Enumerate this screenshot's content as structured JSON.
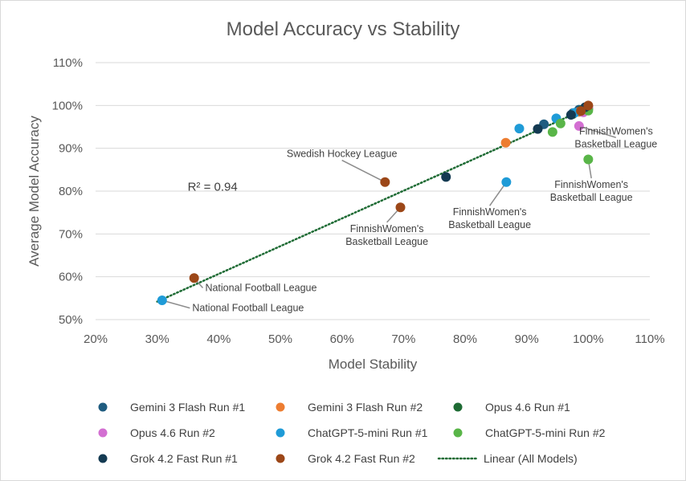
{
  "chart_data": {
    "type": "scatter",
    "title": "Model Accuracy vs Stability",
    "xlabel": "Model Stability",
    "ylabel": "Average Model Accuracy",
    "xlim": [
      0.2,
      1.1
    ],
    "ylim": [
      0.5,
      1.1
    ],
    "x_ticks": [
      "20%",
      "30%",
      "40%",
      "50%",
      "60%",
      "70%",
      "80%",
      "90%",
      "100%",
      "110%"
    ],
    "y_ticks": [
      "50%",
      "60%",
      "70%",
      "80%",
      "90%",
      "100%",
      "110%"
    ],
    "grid": "horizontal",
    "legend_position": "bottom",
    "series": [
      {
        "name": "Gemini 3 Flash Run #1",
        "color": "#1f5c80",
        "points": [
          [
            0.928,
            0.956
          ],
          [
            0.975,
            0.982
          ],
          [
            0.985,
            0.99
          ],
          [
            0.995,
            0.994
          ],
          [
            1.0,
            0.998
          ]
        ]
      },
      {
        "name": "Gemini 3 Flash Run #2",
        "color": "#ed7d31",
        "points": [
          [
            0.866,
            0.913
          ],
          [
            0.985,
            0.985
          ],
          [
            0.995,
            0.993
          ],
          [
            1.0,
            0.999
          ]
        ]
      },
      {
        "name": "Opus 4.6 Run #1",
        "color": "#1e6b34",
        "points": [
          [
            0.975,
            0.98
          ],
          [
            0.99,
            0.99
          ],
          [
            1.0,
            0.992
          ]
        ]
      },
      {
        "name": "Opus 4.6 Run #2",
        "color": "#d36fd2",
        "points": [
          [
            0.985,
            0.952
          ],
          [
            0.992,
            0.984
          ],
          [
            1.0,
            0.997
          ]
        ]
      },
      {
        "name": "ChatGPT-5-mini Run #1",
        "color": "#1f9bd7",
        "points": [
          [
            0.308,
            0.545
          ],
          [
            0.867,
            0.821
          ],
          [
            0.888,
            0.946
          ],
          [
            0.948,
            0.97
          ],
          [
            0.978,
            0.983
          ]
        ]
      },
      {
        "name": "ChatGPT-5-mini Run #2",
        "color": "#59b548",
        "points": [
          [
            1.0,
            0.874
          ],
          [
            0.942,
            0.938
          ],
          [
            0.955,
            0.958
          ],
          [
            1.0,
            0.988
          ]
        ]
      },
      {
        "name": "Grok 4.2 Fast  Run #1",
        "color": "#143a52",
        "points": [
          [
            0.769,
            0.833
          ],
          [
            0.918,
            0.945
          ],
          [
            0.972,
            0.978
          ],
          [
            0.995,
            0.996
          ]
        ]
      },
      {
        "name": "Grok 4.2 Fast Run #2",
        "color": "#9c4718",
        "points": [
          [
            0.36,
            0.597
          ],
          [
            0.67,
            0.821
          ],
          [
            0.695,
            0.762
          ],
          [
            0.988,
            0.987
          ],
          [
            1.0,
            1.0
          ]
        ]
      }
    ],
    "trendline": {
      "name": "Linear (All Models)",
      "color": "#1e6b34",
      "from": [
        0.3,
        0.542
      ],
      "to": [
        1.0,
        0.995
      ],
      "r2_label": "R² = 0.94",
      "r2_position": [
        0.39,
        0.81
      ]
    },
    "annotations": [
      {
        "lines": [
          "Swedish Hockey League"
        ],
        "point": [
          0.67,
          0.821
        ],
        "text_anchor": [
          0.6,
          0.887
        ],
        "align": "middle"
      },
      {
        "lines": [
          "FinnishWomen's",
          "Basketball League"
        ],
        "point": [
          0.695,
          0.762
        ],
        "text_anchor": [
          0.673,
          0.697
        ],
        "align": "middle"
      },
      {
        "lines": [
          "FinnishWomen's",
          "Basketball League"
        ],
        "point": [
          0.867,
          0.821
        ],
        "text_anchor": [
          0.84,
          0.736
        ],
        "align": "middle"
      },
      {
        "lines": [
          "FinnishWomen's",
          "Basketball League"
        ],
        "point": [
          1.0,
          0.874
        ],
        "text_anchor": [
          1.005,
          0.8
        ],
        "align": "middle"
      },
      {
        "lines": [
          "FinnishWomen's",
          "Basketball League"
        ],
        "point": [
          0.985,
          0.952
        ],
        "text_anchor": [
          1.045,
          0.925
        ],
        "align": "middle"
      },
      {
        "lines": [
          "National Football League"
        ],
        "point": [
          0.36,
          0.597
        ],
        "text_anchor": [
          0.378,
          0.574
        ],
        "align": "start"
      },
      {
        "lines": [
          "National Football League"
        ],
        "point": [
          0.308,
          0.545
        ],
        "text_anchor": [
          0.357,
          0.527
        ],
        "align": "start"
      }
    ],
    "legend_items": [
      {
        "label": "Gemini 3 Flash Run #1",
        "color": "#1f5c80",
        "kind": "marker"
      },
      {
        "label": "Gemini 3 Flash Run #2",
        "color": "#ed7d31",
        "kind": "marker"
      },
      {
        "label": "Opus 4.6 Run #1",
        "color": "#1e6b34",
        "kind": "marker"
      },
      {
        "label": "Opus 4.6 Run #2",
        "color": "#d36fd2",
        "kind": "marker"
      },
      {
        "label": "ChatGPT-5-mini Run #1",
        "color": "#1f9bd7",
        "kind": "marker"
      },
      {
        "label": "ChatGPT-5-mini Run #2",
        "color": "#59b548",
        "kind": "marker"
      },
      {
        "label": "Grok 4.2 Fast  Run #1",
        "color": "#143a52",
        "kind": "marker"
      },
      {
        "label": "Grok 4.2 Fast Run #2",
        "color": "#9c4718",
        "kind": "marker"
      },
      {
        "label": "Linear (All Models)",
        "color": "#1e6b34",
        "kind": "dotted-line"
      }
    ]
  }
}
